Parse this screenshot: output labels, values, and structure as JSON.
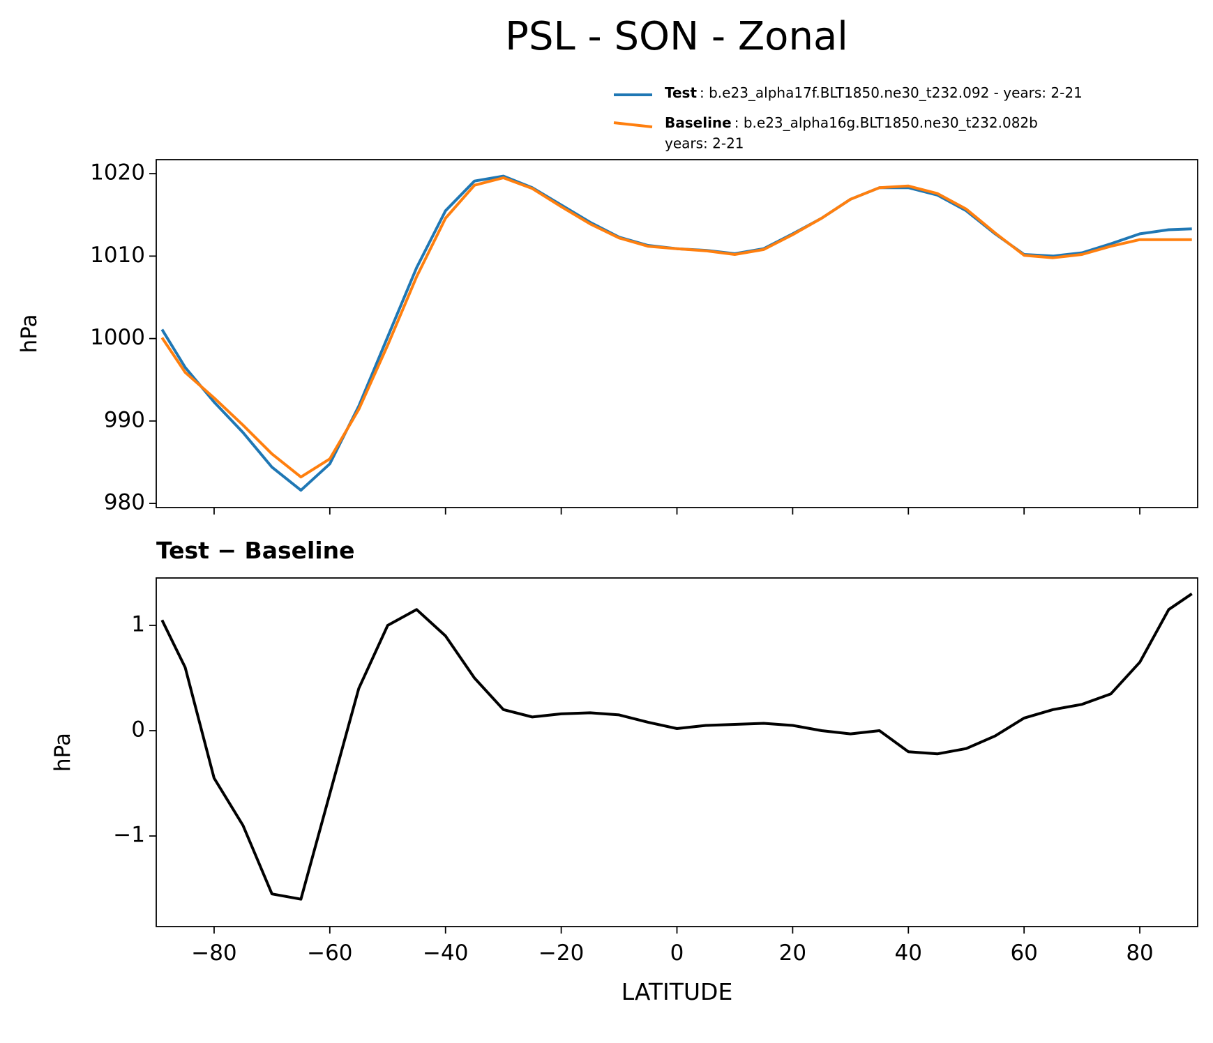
{
  "title": "PSL - SON - Zonal",
  "chart_data": [
    {
      "type": "line",
      "ylabel": "hPa",
      "x": [
        -89,
        -85,
        -80,
        -75,
        -70,
        -65,
        -60,
        -55,
        -50,
        -45,
        -40,
        -35,
        -30,
        -25,
        -20,
        -15,
        -10,
        -5,
        0,
        5,
        10,
        15,
        20,
        25,
        30,
        35,
        40,
        45,
        50,
        55,
        60,
        65,
        70,
        75,
        80,
        85,
        89
      ],
      "series": [
        {
          "name": "Test",
          "label_lines": [
            ": b.e23_alpha17f.BLT1850.ne30_t232.092 - years: 2-21"
          ],
          "color": "#1f77b4",
          "values": [
            1001.1,
            996.5,
            992.3,
            988.6,
            984.4,
            981.6,
            984.8,
            991.8,
            1000.2,
            1008.6,
            1015.5,
            1019.1,
            1019.7,
            1018.3,
            1016.2,
            1014.1,
            1012.3,
            1011.3,
            1010.9,
            1010.7,
            1010.3,
            1010.9,
            1012.7,
            1014.6,
            1016.9,
            1018.3,
            1018.3,
            1017.4,
            1015.5,
            1012.7,
            1010.2,
            1010.0,
            1010.4,
            1011.5,
            1012.7,
            1013.2,
            1013.3
          ]
        },
        {
          "name": "Baseline",
          "label_lines": [
            ": b.e23_alpha16g.BLT1850.ne30_t232.082b",
            "years: 2-21"
          ],
          "color": "#ff7f0e",
          "values": [
            1000.1,
            995.9,
            992.8,
            989.5,
            986.0,
            983.2,
            985.4,
            991.4,
            999.2,
            1007.5,
            1014.6,
            1018.6,
            1019.5,
            1018.2,
            1016.0,
            1013.9,
            1012.2,
            1011.2,
            1010.9,
            1010.65,
            1010.2,
            1010.8,
            1012.6,
            1014.6,
            1016.9,
            1018.3,
            1018.5,
            1017.6,
            1015.7,
            1012.8,
            1010.1,
            1009.8,
            1010.2,
            1011.2,
            1012.0,
            1012.0,
            1012.0
          ]
        }
      ],
      "xlim": [
        -90,
        90
      ],
      "xticks": [
        -80,
        -60,
        -40,
        -20,
        0,
        20,
        40,
        60,
        80
      ],
      "ylim": [
        979.5,
        1021.7
      ],
      "yticks": [
        980,
        990,
        1000,
        1010,
        1020
      ]
    },
    {
      "type": "line",
      "title": "Test − Baseline",
      "xlabel": "LATITUDE",
      "ylabel": "hPa",
      "x": [
        -89,
        -85,
        -80,
        -75,
        -70,
        -65,
        -60,
        -55,
        -50,
        -45,
        -40,
        -35,
        -30,
        -25,
        -20,
        -15,
        -10,
        -5,
        0,
        5,
        10,
        15,
        20,
        25,
        30,
        35,
        40,
        45,
        50,
        55,
        60,
        65,
        70,
        75,
        80,
        85,
        89
      ],
      "values": [
        1.05,
        0.6,
        -0.45,
        -0.9,
        -1.55,
        -1.6,
        -0.6,
        0.4,
        1.0,
        1.15,
        0.9,
        0.5,
        0.2,
        0.13,
        0.16,
        0.17,
        0.15,
        0.08,
        0.02,
        0.05,
        0.06,
        0.07,
        0.05,
        0.0,
        -0.03,
        0.0,
        -0.2,
        -0.22,
        -0.17,
        -0.05,
        0.12,
        0.2,
        0.25,
        0.35,
        0.65,
        1.15,
        1.3
      ],
      "color": "#000000",
      "xlim": [
        -90,
        90
      ],
      "xticks": [
        {
          "value": -80,
          "label": "−80"
        },
        {
          "value": -60,
          "label": "−60"
        },
        {
          "value": -40,
          "label": "−40"
        },
        {
          "value": -20,
          "label": "−20"
        },
        0,
        20,
        40,
        60,
        80
      ],
      "ylim": [
        -1.86,
        1.45
      ],
      "yticks": [
        {
          "value": -1,
          "label": "−1"
        },
        0,
        1
      ]
    }
  ]
}
